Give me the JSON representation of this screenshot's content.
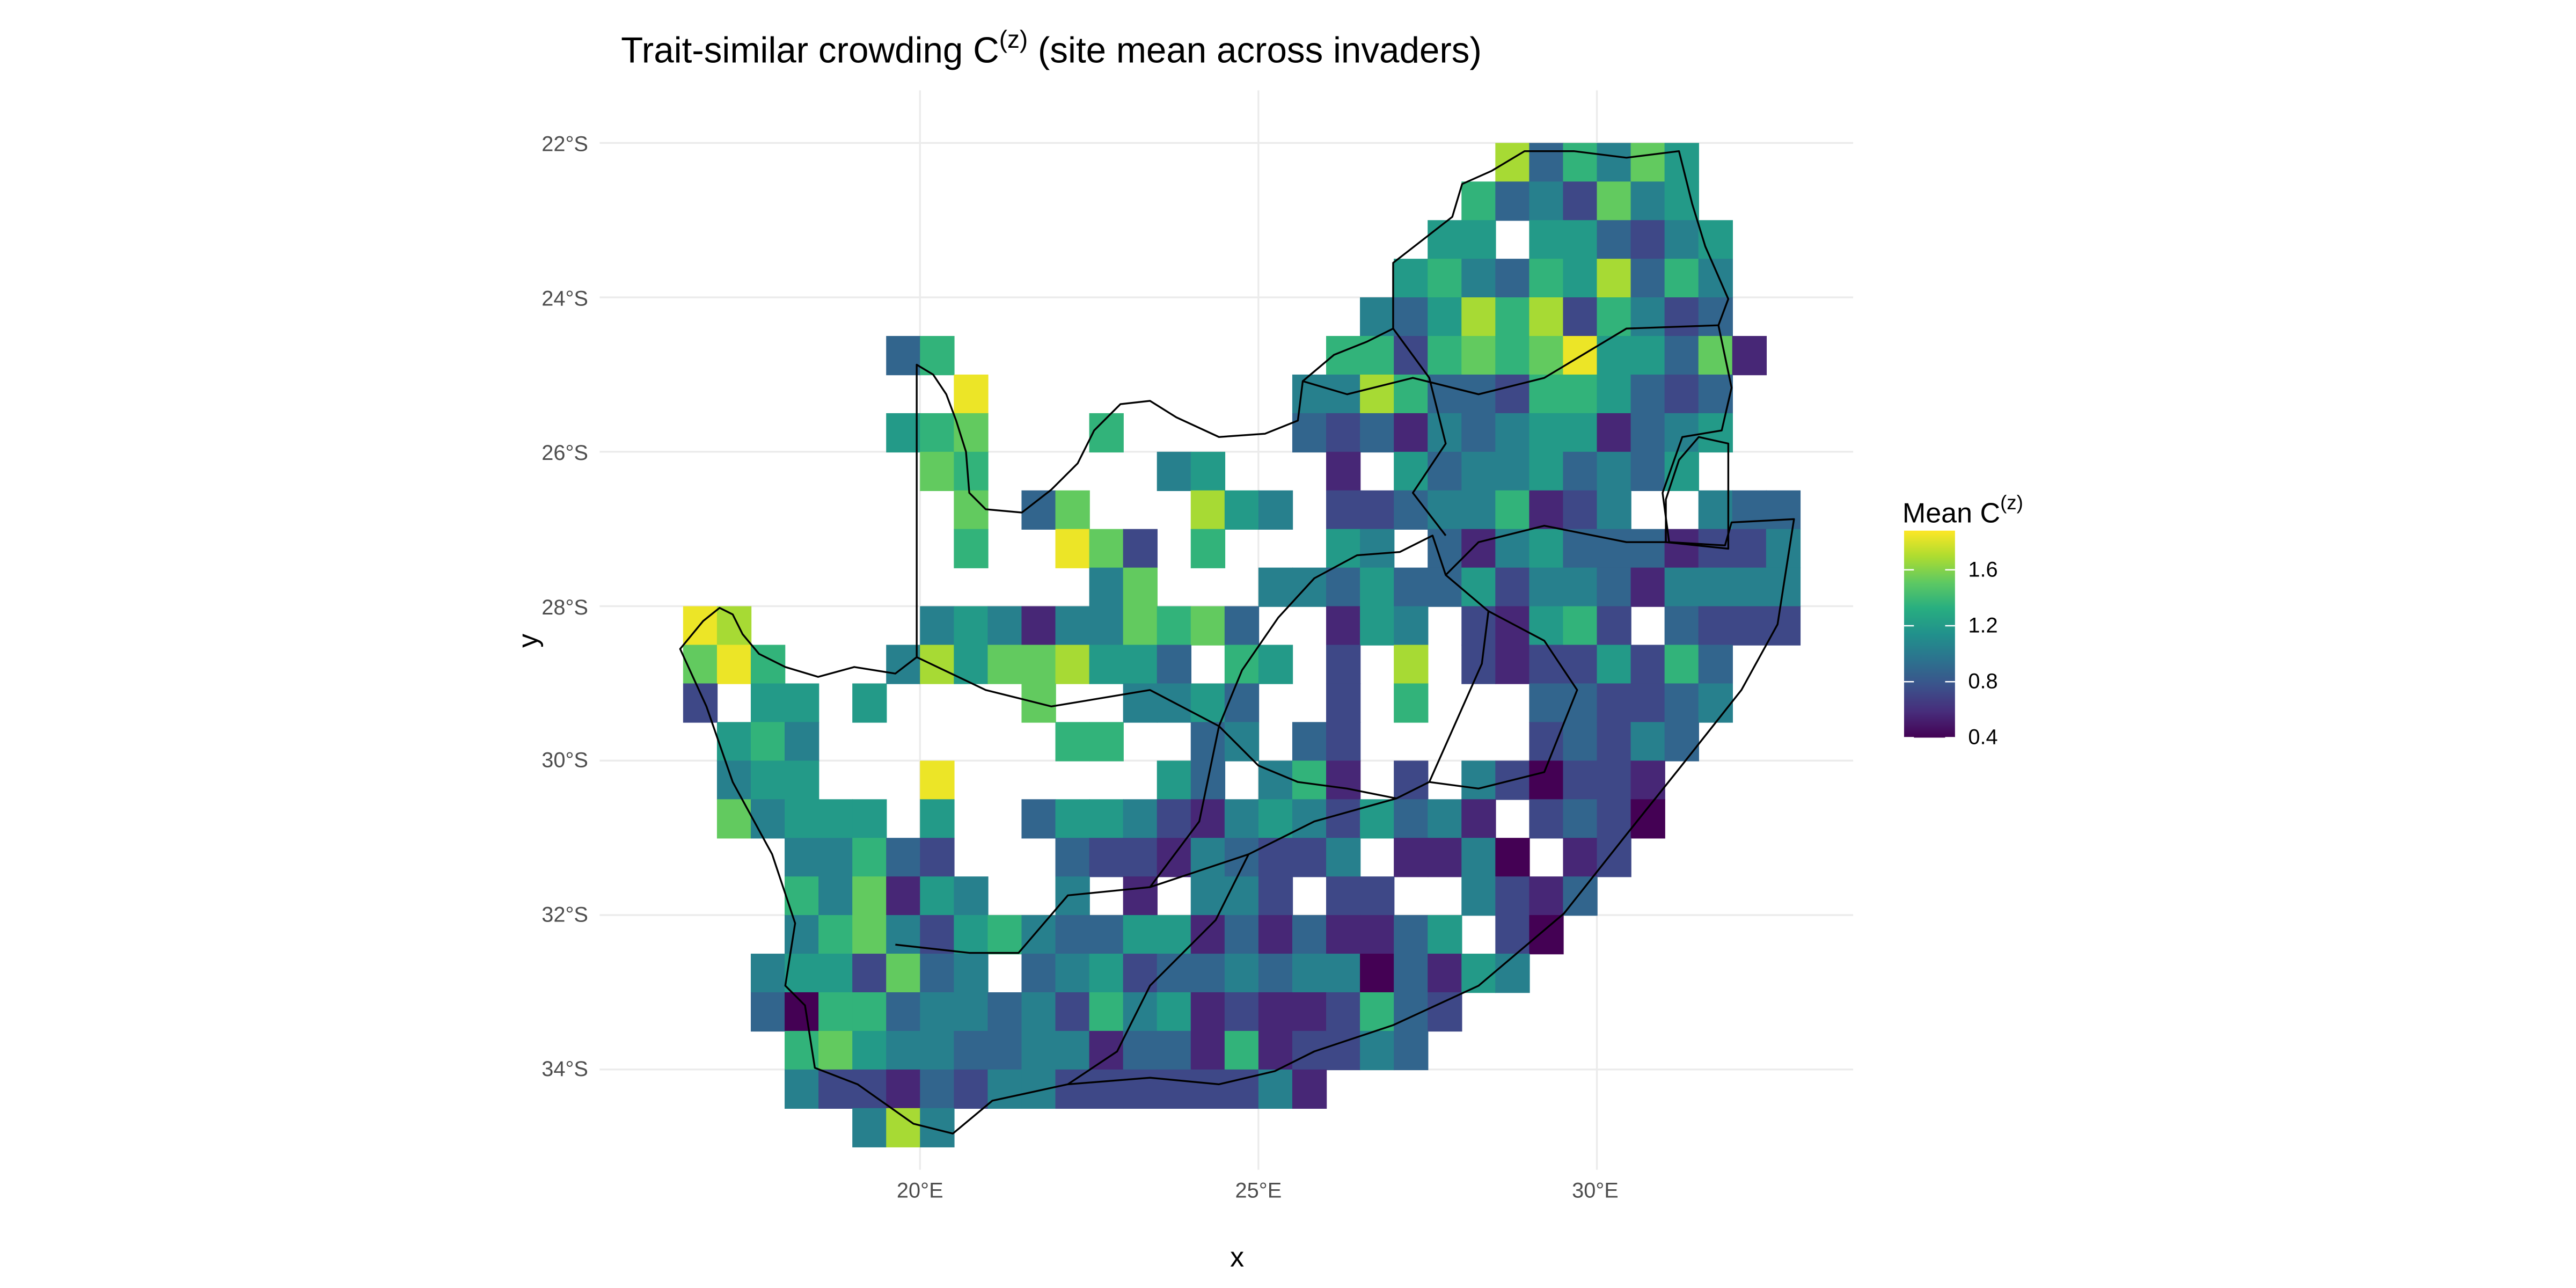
{
  "chart_data": {
    "type": "heatmap",
    "title": {
      "main": "Trait-similar crowding C",
      "sup": "(z)",
      "rest": " (site mean across invaders)"
    },
    "xlabel": "x",
    "ylabel": "y",
    "x_ticks": [
      {
        "value": 20,
        "label": "20°E"
      },
      {
        "value": 25,
        "label": "25°E"
      },
      {
        "value": 30,
        "label": "30°E"
      }
    ],
    "y_ticks": [
      {
        "value": -22,
        "label": "22°S"
      },
      {
        "value": -24,
        "label": "24°S"
      },
      {
        "value": -26,
        "label": "26°S"
      },
      {
        "value": -28,
        "label": "28°S"
      },
      {
        "value": -30,
        "label": "30°S"
      },
      {
        "value": -32,
        "label": "32°S"
      },
      {
        "value": -34,
        "label": "34°S"
      }
    ],
    "legend": {
      "title": "Mean C",
      "title_sup": "(z)",
      "position": "right",
      "range": [
        0.4,
        1.88
      ],
      "ticks": [
        {
          "value": 0.4,
          "label": "0.4"
        },
        {
          "value": 0.8,
          "label": "0.8"
        },
        {
          "value": 1.2,
          "label": "1.2"
        },
        {
          "value": 1.6,
          "label": "1.6"
        }
      ],
      "colormap": "viridis"
    },
    "grid": {
      "lon_min": 16.5,
      "lat_max": -22,
      "cell_size_deg": 0.5
    },
    "value_levels": [
      0.4,
      0.56,
      0.72,
      0.88,
      1.04,
      1.2,
      1.36,
      1.52,
      1.68,
      1.84
    ],
    "cells_encoding": "each row = 0.5° latitude band from 22°S southwards; each char = 0.5° longitude cell from 16.5°E; digit = index into value_levels; '.' = no data",
    "cells": [
      "........................836475...",
      ".......................6342745...",
      "......................55.553245..",
      ".....................5643658364..",
      "....................43586826423..",
      "......36...........6626767955371.",
      "........9.........4486332665323..",
      "......567...6.....3231434551345..",
      ".......76.....45...1.534453435...",
      "........7.37...854.223446124..433",
      "........6..972.6...54.31453331224",
      "............47...4435335244314444",
      "98.....4541447673..154.21562.3222",
      "796...485778553.65.2.8.21225263..",
      "2.55.5....7..4453..2.6...332234..",
      ".564.......66..34.32.....23243...",
      ".455...9......53.461.2.420221....",
      ".74555.5..35542145425341.2320....",
      "...44632...322143224.1140.12.....",
      "...647154..4.1.442.22..4213......",
      "...46742564335513131135.20.......",
      "..4552734.345233434403154........",
      "..306634434264512112632..........",
      "...6754433441331612243...........",
      "...4221324422222241..............",
      ".....484........................."
    ]
  }
}
